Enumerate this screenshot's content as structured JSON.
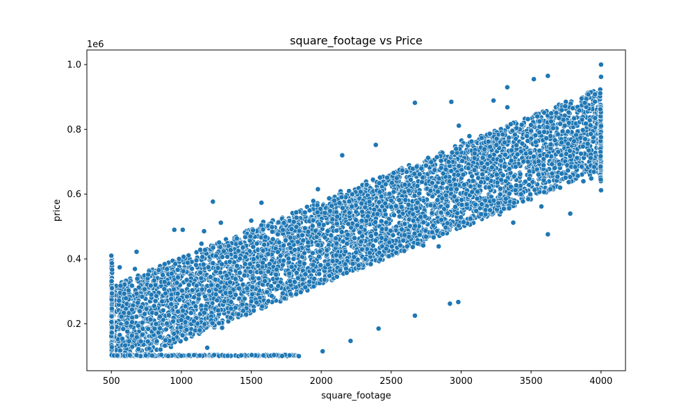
{
  "chart_data": {
    "type": "scatter",
    "title": "square_footage vs Price",
    "xlabel": "square_footage",
    "ylabel": "price",
    "y_offset_label": "1e6",
    "xlim": [
      325,
      4175
    ],
    "ylim": [
      0.055,
      1.045
    ],
    "x_ticks": [
      500,
      1000,
      1500,
      2000,
      2500,
      3000,
      3500,
      4000
    ],
    "x_tick_labels": [
      "500",
      "1000",
      "1500",
      "2000",
      "2500",
      "3000",
      "3500",
      "4000"
    ],
    "y_ticks": [
      0.2,
      0.4,
      0.6,
      0.8,
      1.0
    ],
    "y_tick_labels": [
      "0.2",
      "0.4",
      "0.6",
      "0.8",
      "1.0"
    ],
    "grid": false,
    "legend": "none",
    "marker_color": "#1f77b4",
    "marker_edge_color": "#ffffff",
    "x_range": [
      500,
      4000
    ],
    "y_min": 0.1,
    "y_max": 1.0,
    "trend": {
      "intercept": 0.1,
      "slope_per_sqft": 0.000175
    },
    "band_halfwidth": 0.13,
    "sample_points": [
      {
        "x": 4000,
        "y": 1.0
      },
      {
        "x": 4000,
        "y": 0.962
      },
      {
        "x": 3620,
        "y": 0.965
      },
      {
        "x": 3520,
        "y": 0.955
      },
      {
        "x": 2670,
        "y": 0.882
      },
      {
        "x": 2930,
        "y": 0.885
      },
      {
        "x": 3330,
        "y": 0.93
      },
      {
        "x": 500,
        "y": 0.41
      },
      {
        "x": 680,
        "y": 0.422
      },
      {
        "x": 950,
        "y": 0.49
      },
      {
        "x": 1010,
        "y": 0.49
      },
      {
        "x": 2150,
        "y": 0.72
      },
      {
        "x": 2390,
        "y": 0.752
      },
      {
        "x": 2670,
        "y": 0.225
      },
      {
        "x": 2920,
        "y": 0.262
      },
      {
        "x": 2980,
        "y": 0.267
      },
      {
        "x": 3620,
        "y": 0.476
      },
      {
        "x": 3780,
        "y": 0.54
      },
      {
        "x": 4000,
        "y": 0.612
      },
      {
        "x": 2010,
        "y": 0.115
      },
      {
        "x": 2210,
        "y": 0.147
      },
      {
        "x": 2410,
        "y": 0.185
      },
      {
        "x": 1840,
        "y": 0.1
      }
    ]
  }
}
